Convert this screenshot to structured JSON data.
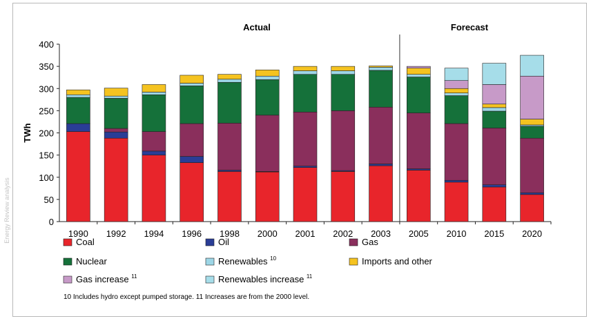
{
  "chart_data": {
    "type": "bar",
    "stacked": true,
    "section_labels": [
      "Actual",
      "Forecast"
    ],
    "ylabel": "TWh",
    "ylim": [
      0,
      400
    ],
    "yticks": [
      "0",
      "50",
      "100",
      "150",
      "200",
      "250",
      "300",
      "350",
      "400"
    ],
    "categories": [
      "1990",
      "1992",
      "1994",
      "1996",
      "1998",
      "2000",
      "2001",
      "2002",
      "2003",
      "2005",
      "2010",
      "2015",
      "2020"
    ],
    "series": [
      {
        "name": "Coal",
        "color": "#e8252b",
        "values": [
          203,
          188,
          150,
          133,
          113,
          112,
          122,
          113,
          126,
          116,
          89,
          78,
          61
        ]
      },
      {
        "name": "Oil",
        "color": "#2a3d96",
        "values": [
          18,
          14,
          9,
          14,
          3,
          1,
          3,
          2,
          4,
          3,
          4,
          5,
          4
        ]
      },
      {
        "name": "Gas",
        "color": "#8a2f5c",
        "values": [
          0,
          8,
          44,
          74,
          106,
          127,
          122,
          135,
          128,
          126,
          128,
          128,
          123
        ]
      },
      {
        "name": "Nuclear",
        "color": "#15713a",
        "values": [
          59,
          68,
          83,
          85,
          92,
          80,
          85,
          82,
          83,
          81,
          63,
          38,
          27
        ]
      },
      {
        "name": "Renewables 10",
        "color": "#9dd6e6",
        "values": [
          6,
          5,
          6,
          6,
          7,
          8,
          8,
          8,
          7,
          6,
          6,
          8,
          3
        ]
      },
      {
        "name": "Imports and other",
        "color": "#f5c320",
        "values": [
          11,
          18,
          17,
          18,
          11,
          14,
          10,
          10,
          3,
          14,
          10,
          8,
          13
        ]
      },
      {
        "name": "Gas increase 11",
        "color": "#c79ac8",
        "values": [
          0,
          0,
          0,
          0,
          0,
          0,
          0,
          0,
          0,
          4,
          18,
          44,
          97
        ]
      },
      {
        "name": "Renewables increase 11",
        "color": "#a6dde9",
        "values": [
          0,
          0,
          0,
          0,
          0,
          0,
          0,
          0,
          0,
          0,
          28,
          48,
          47
        ]
      }
    ],
    "legend_placement": "bottom",
    "footnote": "10 Includes hydro except pumped storage.  11 Increases are from the 2000 level.",
    "grid": false
  },
  "side_text": "Energy Review analysis"
}
